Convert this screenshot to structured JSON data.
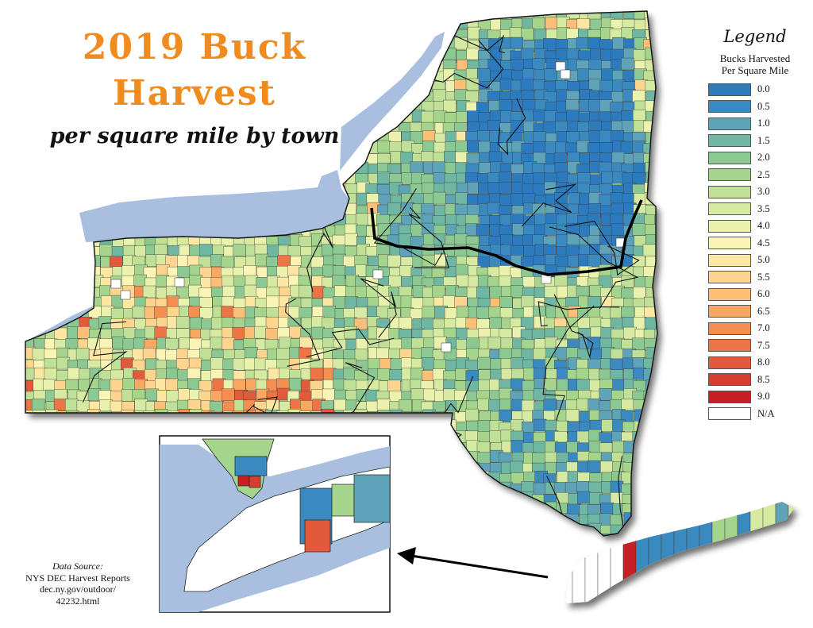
{
  "title": {
    "line1": "2019 Buck",
    "line2": "Harvest",
    "subtitle": "per square mile by town"
  },
  "legend": {
    "title": "Legend",
    "subtitle_line1": "Bucks Harvested",
    "subtitle_line2": "Per Square Mile",
    "items": [
      {
        "label": "0.0",
        "color": "#2c7bbf"
      },
      {
        "label": "0.5",
        "color": "#3a8ac0"
      },
      {
        "label": "1.0",
        "color": "#5ea3b8"
      },
      {
        "label": "1.5",
        "color": "#6fb7a2"
      },
      {
        "label": "2.0",
        "color": "#8cc891"
      },
      {
        "label": "2.5",
        "color": "#a5d58d"
      },
      {
        "label": "3.0",
        "color": "#bfe096"
      },
      {
        "label": "3.5",
        "color": "#d6eaa2"
      },
      {
        "label": "4.0",
        "color": "#eaf2ad"
      },
      {
        "label": "4.5",
        "color": "#fbf5b5"
      },
      {
        "label": "5.0",
        "color": "#fde7a2"
      },
      {
        "label": "5.5",
        "color": "#fdd58e"
      },
      {
        "label": "6.0",
        "color": "#fcbf77"
      },
      {
        "label": "6.5",
        "color": "#f9a862"
      },
      {
        "label": "7.0",
        "color": "#f48f50"
      },
      {
        "label": "7.5",
        "color": "#ec7445"
      },
      {
        "label": "8.0",
        "color": "#e25a3a"
      },
      {
        "label": "8.5",
        "color": "#d63c2f"
      },
      {
        "label": "9.0",
        "color": "#c81e26"
      },
      {
        "label": "N/A",
        "color": "#ffffff"
      }
    ]
  },
  "source": {
    "heading": "Data Source:",
    "line1": "NYS DEC Harvest Reports",
    "line2": "dec.ny.gov/outdoor/",
    "line3": "42232.html"
  },
  "map": {
    "water_color": "#a8bfdf",
    "boundary_color": "#000000"
  }
}
